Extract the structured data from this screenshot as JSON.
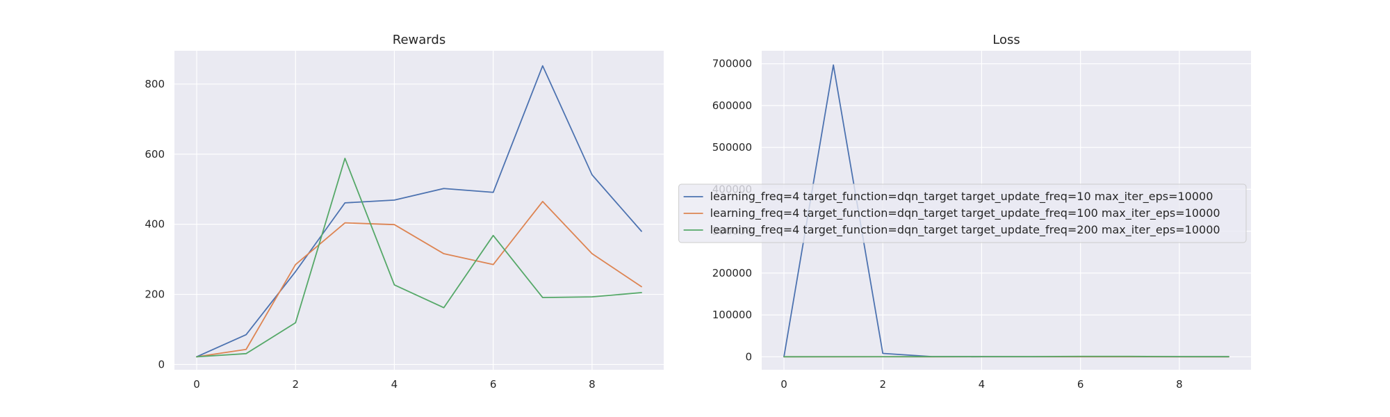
{
  "chart_data": [
    {
      "type": "line",
      "title": "Rewards",
      "xlabel": "",
      "ylabel": "",
      "x": [
        0,
        1,
        2,
        3,
        4,
        5,
        6,
        7,
        8,
        9
      ],
      "xlim": [
        -0.45,
        9.45
      ],
      "ylim": [
        -15,
        895
      ],
      "xticks": [
        0,
        2,
        4,
        6,
        8
      ],
      "yticks": [
        0,
        200,
        400,
        600,
        800
      ],
      "grid": true,
      "series": [
        {
          "values": [
            22,
            85,
            265,
            461,
            469,
            502,
            491,
            852,
            541,
            380
          ],
          "color": "#4c72b0"
        },
        {
          "values": [
            22,
            43,
            285,
            404,
            399,
            316,
            285,
            465,
            316,
            222
          ],
          "color": "#dd8452"
        },
        {
          "values": [
            22,
            31,
            119,
            588,
            227,
            162,
            368,
            191,
            193,
            205
          ],
          "color": "#55a868"
        }
      ]
    },
    {
      "type": "line",
      "title": "Loss",
      "xlabel": "",
      "ylabel": "",
      "x": [
        0,
        1,
        2,
        3,
        4,
        5,
        6,
        7,
        8,
        9
      ],
      "xlim": [
        -0.45,
        9.45
      ],
      "ylim": [
        -31000,
        731000
      ],
      "xticks": [
        0,
        2,
        4,
        6,
        8
      ],
      "yticks": [
        0,
        100000,
        200000,
        300000,
        400000,
        500000,
        600000,
        700000
      ],
      "grid": true,
      "legend_position": "center-right",
      "series": [
        {
          "name": "learning_freq=4 target_function=dqn_target target_update_freq=10 max_iter_eps=10000",
          "values": [
            0,
            697000,
            8000,
            300,
            200,
            150,
            200,
            150,
            100,
            100
          ],
          "color": "#4c72b0"
        },
        {
          "name": "learning_freq=4 target_function=dqn_target target_update_freq=100 max_iter_eps=10000",
          "values": [
            0,
            50,
            80,
            60,
            70,
            80,
            120,
            150,
            60,
            60
          ],
          "color": "#dd8452"
        },
        {
          "name": "learning_freq=4 target_function=dqn_target target_update_freq=200 max_iter_eps=10000",
          "values": [
            0,
            80,
            100,
            200,
            300,
            400,
            1000,
            900,
            300,
            200
          ],
          "color": "#55a868"
        }
      ]
    }
  ]
}
